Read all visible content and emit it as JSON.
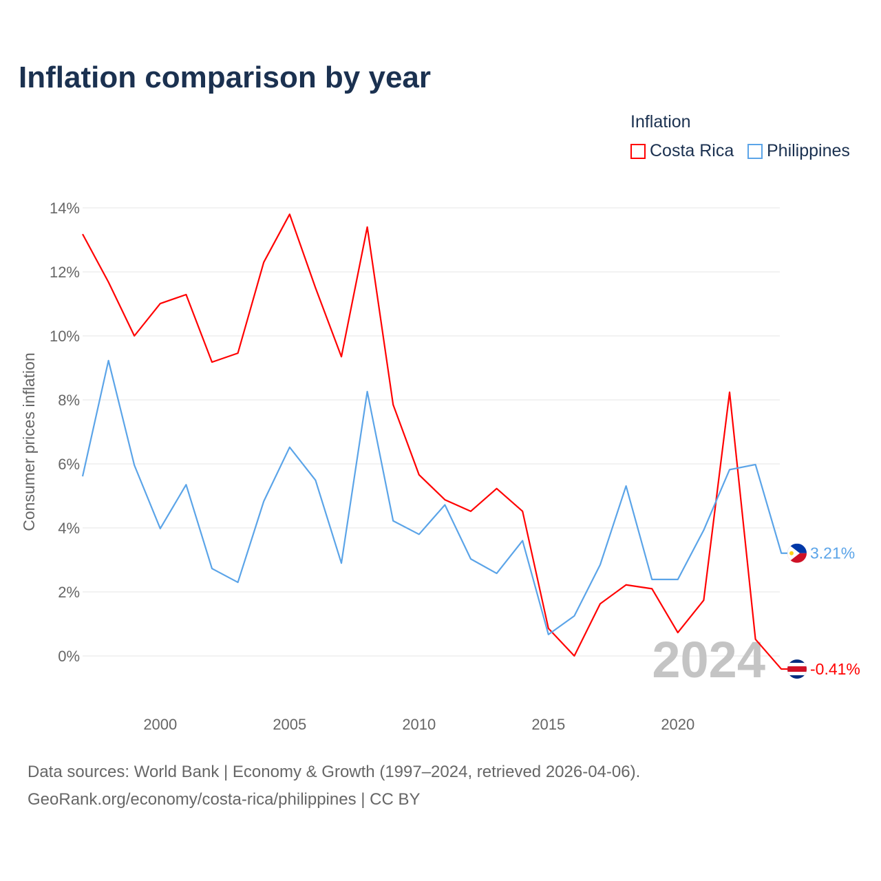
{
  "chart_data": {
    "type": "line",
    "title": "Inflation comparison by year",
    "ylabel": "Consumer prices inflation",
    "xlabel": "",
    "legend_title": "Inflation",
    "legend_position": "top-right",
    "x": [
      1997,
      1998,
      1999,
      2000,
      2001,
      2002,
      2003,
      2004,
      2005,
      2006,
      2007,
      2008,
      2009,
      2010,
      2011,
      2012,
      2013,
      2014,
      2015,
      2016,
      2017,
      2018,
      2019,
      2020,
      2021,
      2022,
      2023,
      2024
    ],
    "series": [
      {
        "name": "Costa Rica",
        "color": "#ff0000",
        "end_label": "-0.41%",
        "values": [
          13.18,
          11.68,
          10.0,
          11.01,
          11.29,
          9.18,
          9.46,
          12.3,
          13.8,
          11.5,
          9.35,
          13.4,
          7.85,
          5.66,
          4.88,
          4.52,
          5.23,
          4.52,
          0.86,
          0.0,
          1.63,
          2.22,
          2.1,
          0.73,
          1.74,
          8.24,
          0.52,
          -0.41
        ]
      },
      {
        "name": "Philippines",
        "color": "#5ba4e8",
        "end_label": "3.21%",
        "values": [
          5.61,
          9.23,
          5.96,
          3.98,
          5.35,
          2.73,
          2.3,
          4.83,
          6.52,
          5.49,
          2.9,
          8.26,
          4.22,
          3.8,
          4.72,
          3.03,
          2.58,
          3.6,
          0.67,
          1.25,
          2.85,
          5.31,
          2.39,
          2.39,
          3.93,
          5.82,
          5.98,
          3.21
        ]
      }
    ],
    "yticks": [
      0,
      2,
      4,
      6,
      8,
      10,
      12,
      14
    ],
    "ytick_labels": [
      "0%",
      "2%",
      "4%",
      "6%",
      "8%",
      "10%",
      "12%",
      "14%"
    ],
    "xticks": [
      2000,
      2005,
      2010,
      2015,
      2020
    ],
    "xtick_labels": [
      "2000",
      "2005",
      "2010",
      "2015",
      "2020"
    ],
    "ylim": [
      -1.5,
      14.5
    ],
    "xlim": [
      1997,
      2024
    ],
    "grid": true,
    "year_watermark": "2024"
  },
  "footer": {
    "line1": "Data sources: World Bank | Economy & Growth (1997–2024, retrieved 2026-04-06).",
    "line2": "GeoRank.org/economy/costa-rica/philippines | CC BY"
  }
}
